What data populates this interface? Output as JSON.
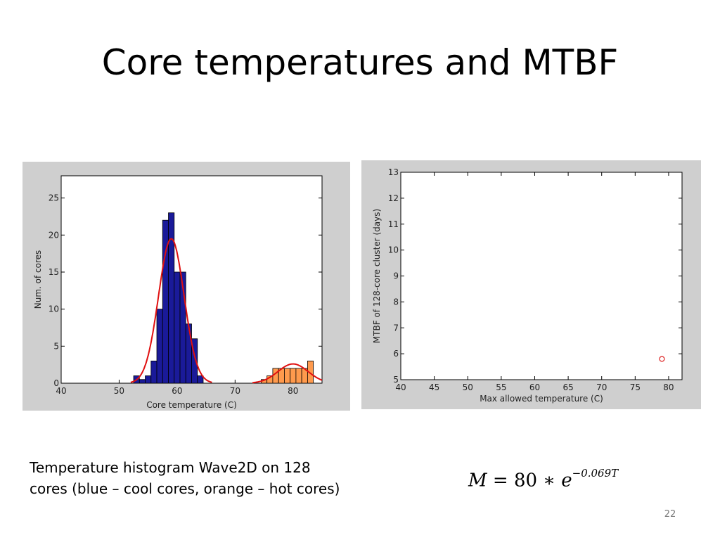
{
  "slide": {
    "title": "Core temperatures and MTBF",
    "caption_lines": [
      "Temperature histogram Wave2D on 128",
      "cores (blue – cool cores, orange – hot cores)"
    ],
    "formula": {
      "lhs": "M",
      "eq": " = 80 ∗ ",
      "base": "e",
      "exponent": "−0.069T"
    },
    "page_number": "22"
  },
  "colors": {
    "cool_bar": "#1a1a99",
    "hot_bar": "#ff9a4d",
    "fit_curve": "#e01010",
    "panel_bg": "#cfcfcf",
    "marker": "#dd2222"
  },
  "chart_data": [
    {
      "type": "bar",
      "xlabel": "Core temperature (C)",
      "ylabel": "Num. of cores",
      "xlim": [
        40,
        85
      ],
      "ylim": [
        0,
        28
      ],
      "xticks": [
        40,
        50,
        60,
        70,
        80
      ],
      "yticks": [
        0,
        5,
        10,
        15,
        20,
        25
      ],
      "series": [
        {
          "color": "cool",
          "bins": [
            {
              "x": 53,
              "count": 1
            },
            {
              "x": 54,
              "count": 0.5
            },
            {
              "x": 55,
              "count": 1
            },
            {
              "x": 56,
              "count": 3
            },
            {
              "x": 57,
              "count": 10
            },
            {
              "x": 58,
              "count": 22
            },
            {
              "x": 59,
              "count": 23
            },
            {
              "x": 60,
              "count": 15
            },
            {
              "x": 61,
              "count": 15
            },
            {
              "x": 62,
              "count": 8
            },
            {
              "x": 63,
              "count": 6
            },
            {
              "x": 64,
              "count": 1
            }
          ]
        },
        {
          "color": "hot",
          "bins": [
            {
              "x": 75,
              "count": 0.5
            },
            {
              "x": 76,
              "count": 1
            },
            {
              "x": 77,
              "count": 2
            },
            {
              "x": 78,
              "count": 2
            },
            {
              "x": 79,
              "count": 2
            },
            {
              "x": 80,
              "count": 2
            },
            {
              "x": 81,
              "count": 2
            },
            {
              "x": 82,
              "count": 2
            },
            {
              "x": 83,
              "count": 3
            }
          ]
        }
      ],
      "fits": [
        {
          "mean": 59,
          "sd": 2.2,
          "peak": 19.5,
          "range": [
            52,
            66
          ]
        },
        {
          "mean": 80,
          "sd": 2.6,
          "peak": 2.6,
          "range": [
            73,
            85
          ]
        }
      ],
      "grid": false
    },
    {
      "type": "scatter",
      "xlabel": "Max allowed temperature (C)",
      "ylabel": "MTBF of 128-core cluster (days)",
      "xlim": [
        40,
        82
      ],
      "ylim": [
        5,
        13
      ],
      "xticks": [
        40,
        45,
        50,
        55,
        60,
        65,
        70,
        75,
        80
      ],
      "yticks": [
        5,
        6,
        7,
        8,
        9,
        10,
        11,
        12,
        13
      ],
      "points": [
        {
          "x": 79,
          "y": 5.8
        }
      ],
      "grid": false
    }
  ]
}
